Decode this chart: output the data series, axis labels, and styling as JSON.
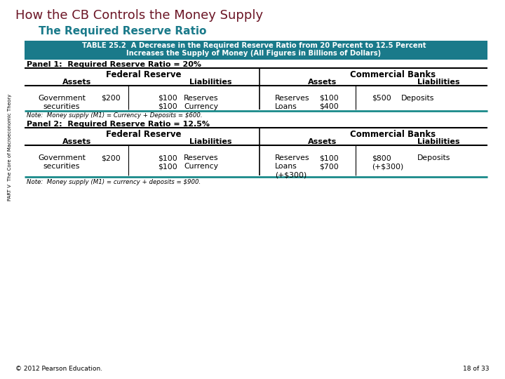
{
  "title": "How the CB Controls the Money Supply",
  "subtitle": "The Required Reserve Ratio",
  "panel1_label": "Panel 1:  Required Reserve Ratio = 20%",
  "panel2_label": "Panel 2:  Required Reserve Ratio = 12.5%",
  "table_header_line1": "TABLE 25.2  A Decrease in the Required Reserve Ratio from 20 Percent to 12.5 Percent",
  "table_header_line2": "Increases the Supply of Money (All Figures in Billions of Dollars)",
  "note1": "Note:  Money supply (M1) = Currency + Deposits = $600.",
  "note2": "Note:  Money supply (M1) = currency + deposits = $900.",
  "footer": "© 2012 Pearson Education.",
  "page": "18 of 33",
  "side_text": "PART V  The Core of Macroeconomic Theory",
  "title_color": "#6B1525",
  "subtitle_color": "#1A7A8A",
  "header_bg": "#1A7A8A",
  "header_text": "#FFFFFF",
  "teal_line_color": "#1A8A8A"
}
